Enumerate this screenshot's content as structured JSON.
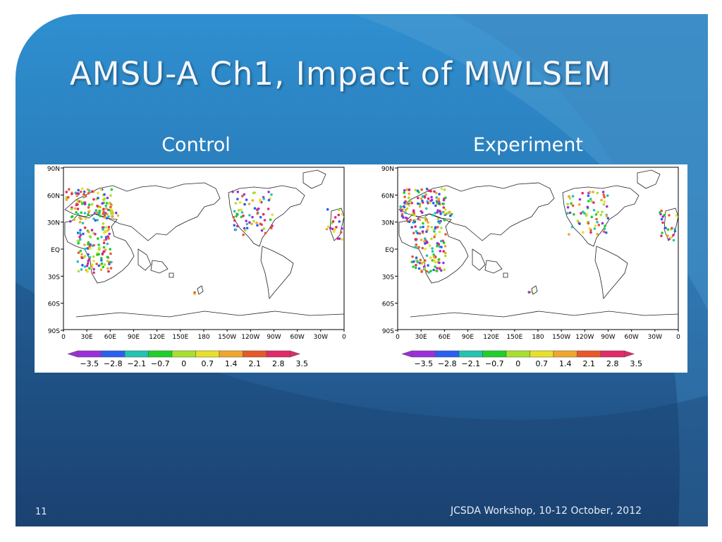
{
  "slide": {
    "title": "AMSU-A Ch1, Impact of MWLSEM",
    "slide_number": "11",
    "footer": "JCSDA Workshop, 10-12 October, 2012"
  },
  "panels": [
    {
      "label": "Control",
      "lat_labels": [
        "90N",
        "60N",
        "30N",
        "EQ",
        "30S",
        "60S",
        "90S"
      ],
      "lon_labels": [
        "0",
        "30E",
        "60E",
        "90E",
        "120E",
        "150E",
        "180",
        "150W",
        "120W",
        "90W",
        "60W",
        "30W",
        "0"
      ],
      "colorbar_labels": [
        "−3.5",
        "−2.8",
        "−2.1",
        "−0.7",
        "0",
        "0.7",
        "1.4",
        "2.1",
        "2.8",
        "3.5"
      ]
    },
    {
      "label": "Experiment",
      "lat_labels": [
        "90N",
        "60N",
        "30N",
        "EQ",
        "30S",
        "60S",
        "90S"
      ],
      "lon_labels": [
        "0",
        "30E",
        "60E",
        "90E",
        "120E",
        "150E",
        "180",
        "150W",
        "120W",
        "90W",
        "60W",
        "30W",
        "0"
      ],
      "colorbar_labels": [
        "−3.5",
        "−2.8",
        "−2.1",
        "−0.7",
        "0",
        "0.7",
        "1.4",
        "2.1",
        "2.8",
        "3.5"
      ]
    }
  ],
  "colorbar_colors": [
    "#9c2fd9",
    "#2a5ff0",
    "#21c4b0",
    "#1fcf2a",
    "#a8e02e",
    "#e8df2a",
    "#f0a62a",
    "#e8582a",
    "#e02a6a"
  ]
}
